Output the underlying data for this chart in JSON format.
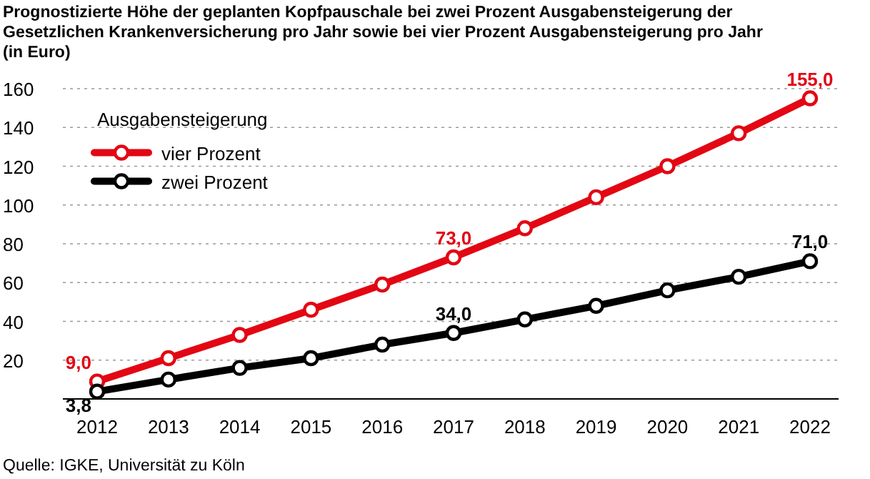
{
  "chart_data": {
    "type": "line",
    "title": "Prognostizierte Höhe der geplanten Kopfpauschale bei zwei Prozent Ausgabensteigerung der Gesetzlichen Krankenversicherung pro Jahr sowie bei vier Prozent Ausgabensteigerung pro Jahr (in Euro)",
    "categories": [
      "2012",
      "2013",
      "2014",
      "2015",
      "2016",
      "2017",
      "2018",
      "2019",
      "2020",
      "2021",
      "2022"
    ],
    "series": [
      {
        "name": "vier Prozent",
        "color": "#e30613",
        "values": [
          9.0,
          21,
          33,
          46,
          59,
          73.0,
          88,
          104,
          120,
          137,
          155.0
        ],
        "value_labels": [
          "9,0",
          null,
          null,
          null,
          null,
          "73,0",
          null,
          null,
          null,
          null,
          "155,0"
        ]
      },
      {
        "name": "zwei Prozent",
        "color": "#000000",
        "values": [
          3.8,
          10,
          16,
          21,
          28,
          34.0,
          41,
          48,
          56,
          63,
          71.0
        ],
        "value_labels": [
          "3,8",
          null,
          null,
          null,
          null,
          "34,0",
          null,
          null,
          null,
          null,
          "71,0"
        ]
      }
    ],
    "ylim": [
      0,
      160
    ],
    "yticks": [
      20,
      40,
      60,
      80,
      100,
      120,
      140,
      160
    ],
    "grid": "y",
    "legend": "top left",
    "legend_title": "Ausgabensteigerung",
    "marker": "circle",
    "line_style": "solid",
    "annotations": [
      "Quelle: IGKE, Universität zu Köln"
    ]
  }
}
